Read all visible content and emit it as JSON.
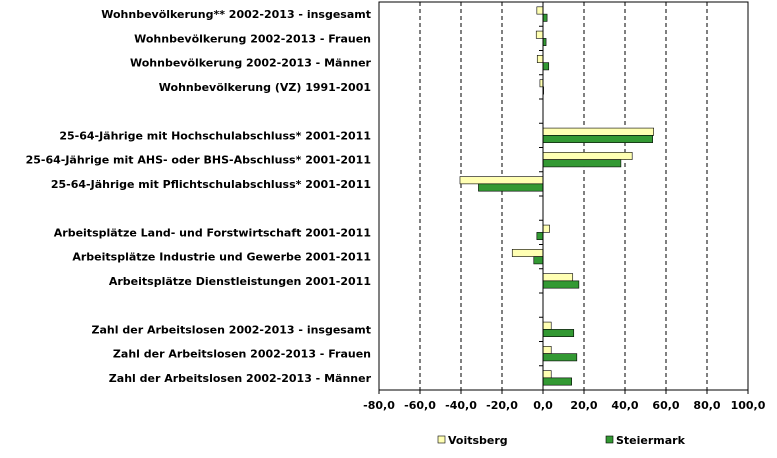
{
  "chart_data": {
    "type": "bar",
    "orientation": "horizontal",
    "title": "",
    "xlabel": "",
    "ylabel": "",
    "xlim": [
      -80,
      100
    ],
    "xticks": [
      "-80,0",
      "-60,0",
      "-40,0",
      "-20,0",
      "0,0",
      "20,0",
      "40,0",
      "60,0",
      "80,0",
      "100,0"
    ],
    "grid": "vertical dashed",
    "legend_position": "bottom",
    "categories": [
      "Wohnbevölkerung** 2002-2013 - insgesamt",
      "Wohnbevölkerung 2002-2013 - Frauen",
      "Wohnbevölkerung 2002-2013 - Männer",
      "Wohnbevölkerung (VZ) 1991-2001",
      "",
      "25-64-Jährige mit Hochschulabschluss* 2001-2011",
      "25-64-Jährige mit AHS- oder BHS-Abschluss* 2001-2011",
      "25-64-Jährige mit Pflichtschulabschluss* 2001-2011",
      "",
      "Arbeitsplätze Land- und Forstwirtschaft 2001-2011",
      "Arbeitsplätze Industrie und Gewerbe 2001-2011",
      "Arbeitsplätze Dienstleistungen 2001-2011",
      "",
      "Zahl der Arbeitslosen 2002-2013 - insgesamt",
      "Zahl der Arbeitslosen 2002-2013 - Frauen",
      "Zahl der Arbeitslosen 2002-2013 - Männer"
    ],
    "series": [
      {
        "name": "Voitsberg",
        "color": "#ffffb3",
        "values": [
          -3.0,
          -3.3,
          -2.8,
          -1.5,
          null,
          54.0,
          43.5,
          -40.5,
          null,
          3.2,
          -15.0,
          14.5,
          null,
          4.0,
          4.0,
          4.0
        ]
      },
      {
        "name": "Steiermark",
        "color": "#339933",
        "values": [
          2.0,
          1.5,
          2.8,
          0.3,
          null,
          53.5,
          38.0,
          -31.5,
          null,
          -3.0,
          -4.5,
          17.5,
          null,
          15.0,
          16.5,
          14.0
        ]
      }
    ]
  }
}
